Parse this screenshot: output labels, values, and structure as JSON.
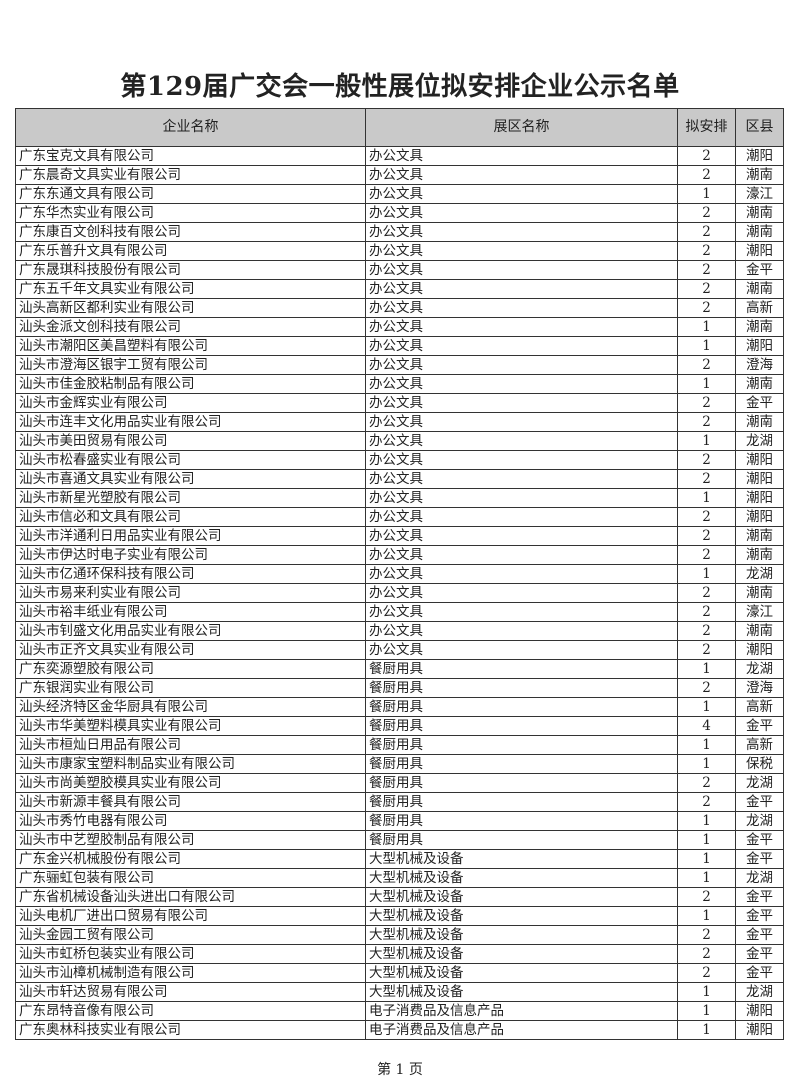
{
  "title": "第129届广交会一般性展位拟安排企业公示名单",
  "columns": [
    "企业名称",
    "展区名称",
    "拟安排",
    "区县"
  ],
  "rows": [
    [
      "广东宝克文具有限公司",
      "办公文具",
      "2",
      "潮阳"
    ],
    [
      "广东晨奇文具实业有限公司",
      "办公文具",
      "2",
      "潮南"
    ],
    [
      "广东东通文具有限公司",
      "办公文具",
      "1",
      "濠江"
    ],
    [
      "广东华杰实业有限公司",
      "办公文具",
      "2",
      "潮南"
    ],
    [
      "广东康百文创科技有限公司",
      "办公文具",
      "2",
      "潮南"
    ],
    [
      "广东乐普升文具有限公司",
      "办公文具",
      "2",
      "潮阳"
    ],
    [
      "广东晟琪科技股份有限公司",
      "办公文具",
      "2",
      "金平"
    ],
    [
      "广东五千年文具实业有限公司",
      "办公文具",
      "2",
      "潮南"
    ],
    [
      "汕头高新区都利实业有限公司",
      "办公文具",
      "2",
      "高新"
    ],
    [
      "汕头金派文创科技有限公司",
      "办公文具",
      "1",
      "潮南"
    ],
    [
      "汕头市潮阳区美昌塑料有限公司",
      "办公文具",
      "1",
      "潮阳"
    ],
    [
      "汕头市澄海区银宇工贸有限公司",
      "办公文具",
      "2",
      "澄海"
    ],
    [
      "汕头市佳金胶粘制品有限公司",
      "办公文具",
      "1",
      "潮南"
    ],
    [
      "汕头市金辉实业有限公司",
      "办公文具",
      "2",
      "金平"
    ],
    [
      "汕头市连丰文化用品实业有限公司",
      "办公文具",
      "2",
      "潮南"
    ],
    [
      "汕头市美田贸易有限公司",
      "办公文具",
      "1",
      "龙湖"
    ],
    [
      "汕头市松春盛实业有限公司",
      "办公文具",
      "2",
      "潮阳"
    ],
    [
      "汕头市喜通文具实业有限公司",
      "办公文具",
      "2",
      "潮阳"
    ],
    [
      "汕头市新星光塑胶有限公司",
      "办公文具",
      "1",
      "潮阳"
    ],
    [
      "汕头市信必和文具有限公司",
      "办公文具",
      "2",
      "潮阳"
    ],
    [
      "汕头市洋通利日用品实业有限公司",
      "办公文具",
      "2",
      "潮南"
    ],
    [
      "汕头市伊达时电子实业有限公司",
      "办公文具",
      "2",
      "潮南"
    ],
    [
      "汕头市亿通环保科技有限公司",
      "办公文具",
      "1",
      "龙湖"
    ],
    [
      "汕头市易来利实业有限公司",
      "办公文具",
      "2",
      "潮南"
    ],
    [
      "汕头市裕丰纸业有限公司",
      "办公文具",
      "2",
      "濠江"
    ],
    [
      "汕头市钊盛文化用品实业有限公司",
      "办公文具",
      "2",
      "潮南"
    ],
    [
      "汕头市正齐文具实业有限公司",
      "办公文具",
      "2",
      "潮阳"
    ],
    [
      "广东奕源塑胶有限公司",
      "餐厨用具",
      "1",
      "龙湖"
    ],
    [
      "广东银润实业有限公司",
      "餐厨用具",
      "2",
      "澄海"
    ],
    [
      "汕头经济特区金华厨具有限公司",
      "餐厨用具",
      "1",
      "高新"
    ],
    [
      "汕头市华美塑料模具实业有限公司",
      "餐厨用具",
      "4",
      "金平"
    ],
    [
      "汕头市桓灿日用品有限公司",
      "餐厨用具",
      "1",
      "高新"
    ],
    [
      "汕头市康家宝塑料制品实业有限公司",
      "餐厨用具",
      "1",
      "保税"
    ],
    [
      "汕头市尚美塑胶模具实业有限公司",
      "餐厨用具",
      "2",
      "龙湖"
    ],
    [
      "汕头市新源丰餐具有限公司",
      "餐厨用具",
      "2",
      "金平"
    ],
    [
      "汕头市秀竹电器有限公司",
      "餐厨用具",
      "1",
      "龙湖"
    ],
    [
      "汕头市中艺塑胶制品有限公司",
      "餐厨用具",
      "1",
      "金平"
    ],
    [
      "广东金兴机械股份有限公司",
      "大型机械及设备",
      "1",
      "金平"
    ],
    [
      "广东骊虹包装有限公司",
      "大型机械及设备",
      "1",
      "龙湖"
    ],
    [
      "广东省机械设备汕头进出口有限公司",
      "大型机械及设备",
      "2",
      "金平"
    ],
    [
      "汕头电机厂进出口贸易有限公司",
      "大型机械及设备",
      "1",
      "金平"
    ],
    [
      "汕头金园工贸有限公司",
      "大型机械及设备",
      "2",
      "金平"
    ],
    [
      "汕头市虹桥包装实业有限公司",
      "大型机械及设备",
      "2",
      "金平"
    ],
    [
      "汕头市汕樟机械制造有限公司",
      "大型机械及设备",
      "2",
      "金平"
    ],
    [
      "汕头市轩达贸易有限公司",
      "大型机械及设备",
      "1",
      "龙湖"
    ],
    [
      "广东昂特音像有限公司",
      "电子消费品及信息产品",
      "1",
      "潮阳"
    ],
    [
      "广东奥林科技实业有限公司",
      "电子消费品及信息产品",
      "1",
      "潮阳"
    ]
  ],
  "footer": "第 1 页",
  "colors": {
    "header_bg": "#c9c9c9",
    "border": "#333333"
  }
}
